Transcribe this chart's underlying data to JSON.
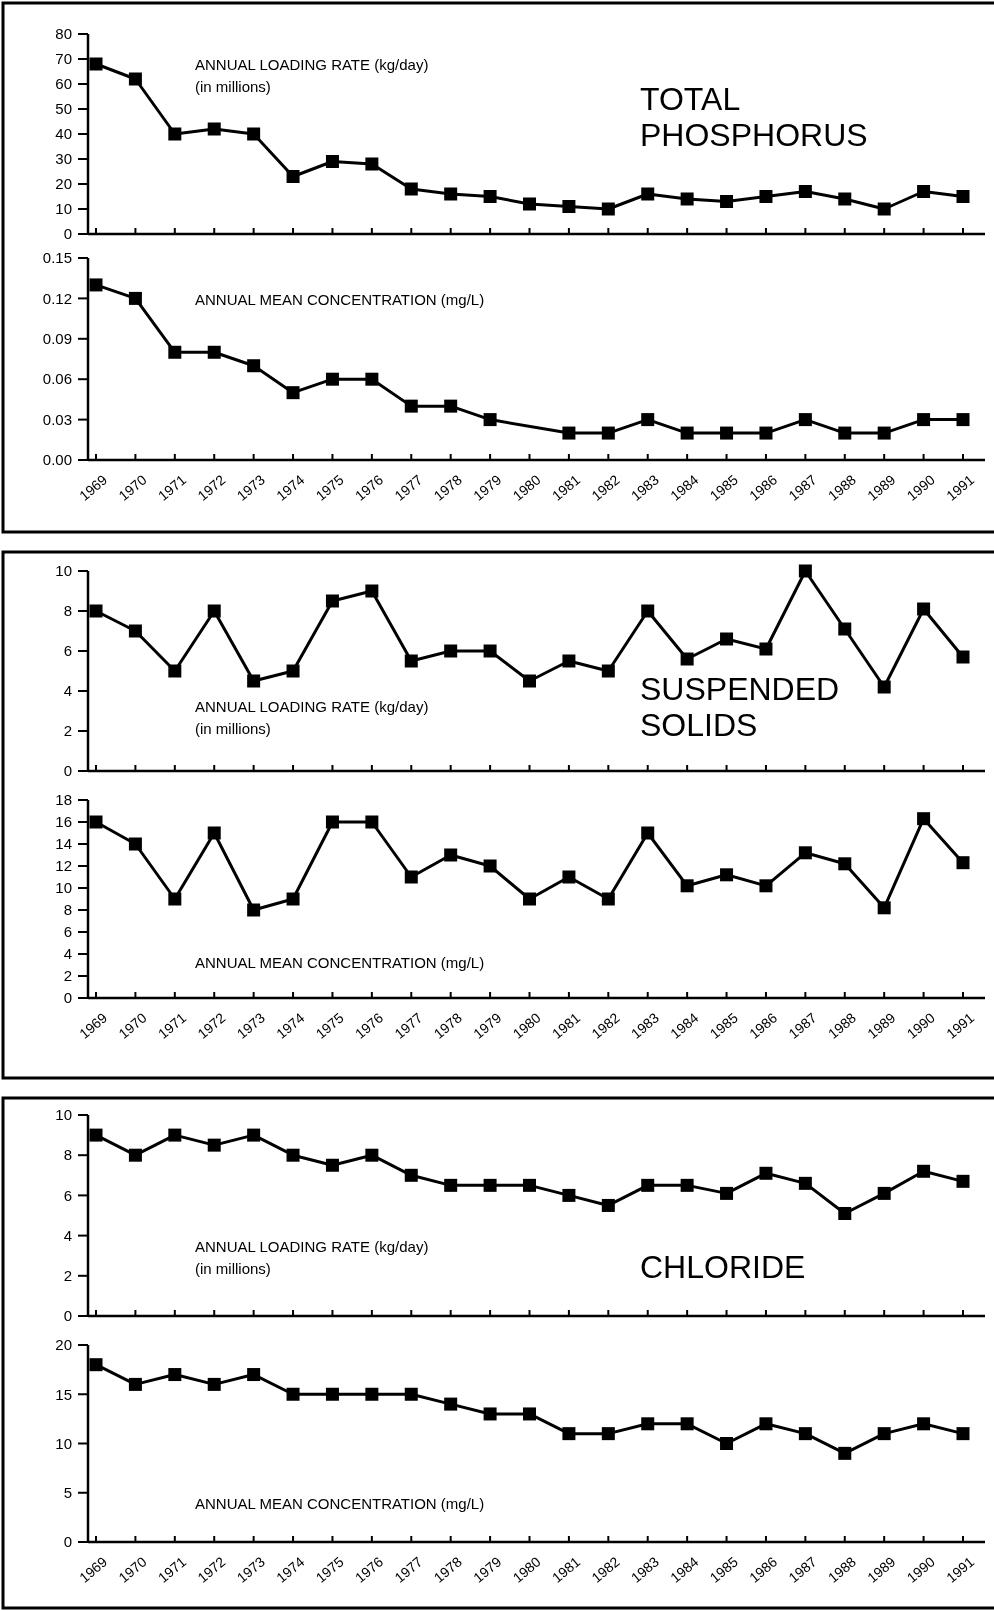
{
  "chart_data": [
    {
      "type": "line",
      "title": "TOTAL PHOSPHORUS",
      "annotations": [
        "ANNUAL LOADING RATE (kg/day)",
        "(in millions)"
      ],
      "categories": [
        "1969",
        "1970",
        "1971",
        "1972",
        "1973",
        "1974",
        "1975",
        "1976",
        "1977",
        "1978",
        "1979",
        "1980",
        "1981",
        "1982",
        "1983",
        "1984",
        "1985",
        "1986",
        "1987",
        "1988",
        "1989",
        "1990",
        "1991"
      ],
      "values": [
        68,
        62,
        40,
        42,
        40,
        23,
        29,
        28,
        18,
        16,
        15,
        12,
        11,
        10,
        16,
        14,
        13,
        15,
        17,
        14,
        10,
        17,
        15
      ],
      "color": "#000000",
      "marker": "square",
      "ylim": [
        0,
        80
      ],
      "yticks": [
        0,
        10,
        20,
        30,
        40,
        50,
        60,
        70,
        80
      ],
      "tick_labels": "y"
    },
    {
      "type": "line",
      "annotations": [
        "ANNUAL MEAN CONCENTRATION (mg/L)"
      ],
      "categories": [
        "1969",
        "1970",
        "1971",
        "1972",
        "1973",
        "1974",
        "1975",
        "1976",
        "1977",
        "1978",
        "1979",
        "1980",
        "1981",
        "1982",
        "1983",
        "1984",
        "1985",
        "1986",
        "1987",
        "1988",
        "1989",
        "1990",
        "1991"
      ],
      "values": [
        0.13,
        0.12,
        0.08,
        0.08,
        0.07,
        0.05,
        0.06,
        0.06,
        0.04,
        0.04,
        0.03,
        null,
        0.02,
        0.02,
        0.03,
        0.02,
        0.02,
        0.02,
        0.03,
        0.02,
        0.02,
        0.03,
        0.03
      ],
      "color": "#000000",
      "marker": "square",
      "ylim": [
        0,
        0.15
      ],
      "yticks": [
        {
          "value": 0,
          "label": "0.00"
        },
        {
          "value": 0.03,
          "label": "0.03"
        },
        {
          "value": 0.06,
          "label": "0.06"
        },
        {
          "value": 0.09,
          "label": "0.09"
        },
        {
          "value": 0.12,
          "label": "0.12"
        },
        {
          "value": 0.15,
          "label": "0.15"
        }
      ]
    },
    {
      "type": "line",
      "title": "SUSPENDED SOLIDS",
      "annotations": [
        "ANNUAL LOADING RATE (kg/day)",
        "(in millions)"
      ],
      "categories": [
        "1969",
        "1970",
        "1971",
        "1972",
        "1973",
        "1974",
        "1975",
        "1976",
        "1977",
        "1978",
        "1979",
        "1980",
        "1981",
        "1982",
        "1983",
        "1984",
        "1985",
        "1986",
        "1987",
        "1988",
        "1989",
        "1990",
        "1991"
      ],
      "values": [
        8,
        7,
        5,
        8,
        4.5,
        5,
        8.5,
        9,
        5.5,
        6,
        6,
        4.5,
        5.5,
        5,
        8,
        5.6,
        6.6,
        6.1,
        10,
        7.1,
        4.2,
        8.1,
        5.7
      ],
      "color": "#000000",
      "marker": "square",
      "ylim": [
        0,
        10
      ],
      "yticks": [
        0,
        2,
        4,
        6,
        8,
        10
      ],
      "tick_labels": "y"
    },
    {
      "type": "line",
      "annotations": [
        "ANNUAL MEAN CONCENTRATION (mg/L)"
      ],
      "categories": [
        "1969",
        "1970",
        "1971",
        "1972",
        "1973",
        "1974",
        "1975",
        "1976",
        "1977",
        "1978",
        "1979",
        "1980",
        "1981",
        "1982",
        "1983",
        "1984",
        "1985",
        "1986",
        "1987",
        "1988",
        "1989",
        "1990",
        "1991"
      ],
      "values": [
        16,
        14,
        9,
        15,
        8,
        9,
        16,
        16,
        11,
        13,
        12,
        9,
        11,
        9,
        15,
        10.2,
        11.2,
        10.2,
        13.2,
        12.2,
        8.2,
        16.3,
        12.3
      ],
      "color": "#000000",
      "marker": "square",
      "ylim": [
        0,
        18
      ],
      "yticks": [
        0,
        2,
        4,
        6,
        8,
        10,
        12,
        14,
        16,
        18
      ]
    },
    {
      "type": "line",
      "title": "CHLORIDE",
      "annotations": [
        "ANNUAL LOADING RATE (kg/day)",
        "(in millions)"
      ],
      "categories": [
        "1969",
        "1970",
        "1971",
        "1972",
        "1973",
        "1974",
        "1975",
        "1976",
        "1977",
        "1978",
        "1979",
        "1980",
        "1981",
        "1982",
        "1983",
        "1984",
        "1985",
        "1986",
        "1987",
        "1988",
        "1989",
        "1990",
        "1991"
      ],
      "values": [
        9,
        8,
        9,
        8.5,
        9,
        8,
        7.5,
        8,
        7,
        6.5,
        6.5,
        6.5,
        6,
        5.5,
        6.5,
        6.5,
        6.1,
        7.1,
        6.6,
        5.1,
        6.1,
        7.2,
        6.7
      ],
      "color": "#000000",
      "marker": "square",
      "ylim": [
        0,
        10
      ],
      "yticks": [
        0,
        2,
        4,
        6,
        8,
        10
      ],
      "tick_labels": "y"
    },
    {
      "type": "line",
      "annotations": [
        "ANNUAL MEAN CONCENTRATION (mg/L)"
      ],
      "categories": [
        "1969",
        "1970",
        "1971",
        "1972",
        "1973",
        "1974",
        "1975",
        "1976",
        "1977",
        "1978",
        "1979",
        "1980",
        "1981",
        "1982",
        "1983",
        "1984",
        "1985",
        "1986",
        "1987",
        "1988",
        "1989",
        "1990",
        "1991"
      ],
      "values": [
        18,
        16,
        17,
        16,
        17,
        15,
        15,
        15,
        15,
        14,
        13,
        13,
        11,
        11,
        12,
        12,
        10,
        12,
        11,
        9,
        11,
        12,
        11
      ],
      "color": "#000000",
      "marker": "square",
      "ylim": [
        0,
        20
      ],
      "yticks": [
        0,
        5,
        10,
        15,
        20
      ]
    }
  ]
}
